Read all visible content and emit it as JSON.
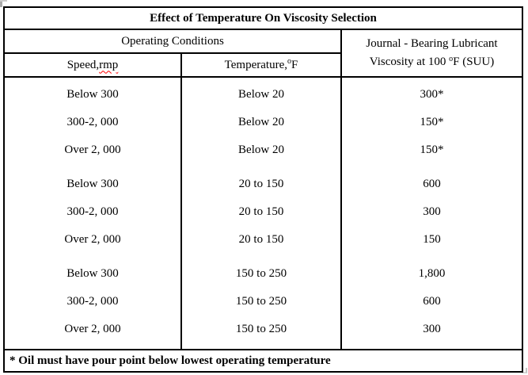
{
  "title": "Effect of Temperature On Viscosity Selection",
  "header": {
    "operating_conditions": "Operating Conditions",
    "speed": {
      "pre": "Speed, ",
      "word": "rmp"
    },
    "temperature": {
      "pre": "Temperature, ",
      "sup": "o",
      "post": "F"
    },
    "lubricant_line1": "Journal - Bearing Lubricant",
    "lubricant_line2": {
      "pre": "Viscosity at 100 ",
      "sup": "o",
      "post": "F (SUU)"
    }
  },
  "rows": [
    {
      "speed": "Below 300",
      "temperature": "Below 20",
      "viscosity": "300*"
    },
    {
      "speed": "300-2, 000",
      "temperature": "Below 20",
      "viscosity": "150*"
    },
    {
      "speed": "Over 2, 000",
      "temperature": "Below 20",
      "viscosity": "150*"
    },
    {
      "speed": "Below 300",
      "temperature": "20 to 150",
      "viscosity": "600"
    },
    {
      "speed": "300-2, 000",
      "temperature": "20 to 150",
      "viscosity": "300"
    },
    {
      "speed": "Over 2, 000",
      "temperature": "20 to 150",
      "viscosity": "150"
    },
    {
      "speed": "Below 300",
      "temperature": "150 to 250",
      "viscosity": "1,800"
    },
    {
      "speed": "300-2, 000",
      "temperature": "150 to 250",
      "viscosity": "600"
    },
    {
      "speed": "Over 2, 000",
      "temperature": "150 to 250",
      "viscosity": "300"
    }
  ],
  "footnote": "* Oil must have pour point below lowest operating temperature",
  "colors": {
    "border": "#000000",
    "text": "#000000",
    "background": "#ffffff",
    "spellcheck_underline": "#ff0000"
  }
}
